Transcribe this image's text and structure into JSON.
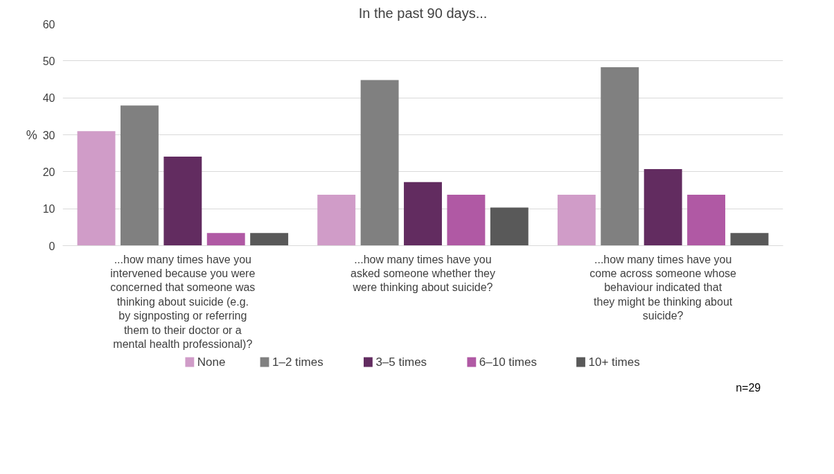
{
  "chart_data": {
    "type": "bar",
    "title": "In the past 90 days...",
    "ylabel": "%",
    "categories": [
      "...how many times have you intervened because you were concerned that someone was thinking about suicide (e.g. by signposting or referring them to their doctor or a mental health professional)?",
      "...how many times have you asked someone whether they were thinking about suicide?",
      "...how many times have you come across someone whose behaviour indicated that they might be thinking about suicide?"
    ],
    "series": [
      {
        "name": "None",
        "color": "#d09cc8",
        "values": [
          31.0,
          13.8,
          13.8
        ]
      },
      {
        "name": "1–2 times",
        "color": "#808080",
        "values": [
          37.9,
          44.8,
          48.3
        ]
      },
      {
        "name": "3–5 times",
        "color": "#622c60",
        "values": [
          24.1,
          17.2,
          20.7
        ]
      },
      {
        "name": "6–10 times",
        "color": "#b059a4",
        "values": [
          3.4,
          13.8,
          13.8
        ]
      },
      {
        "name": "10+ times",
        "color": "#595959",
        "values": [
          3.4,
          10.3,
          3.4
        ]
      }
    ],
    "ylim": [
      0,
      60
    ],
    "yticks": [
      0,
      10,
      20,
      30,
      40,
      50,
      60
    ],
    "grid": "y",
    "legend": "bottom",
    "annotations": [
      "n=29"
    ]
  }
}
